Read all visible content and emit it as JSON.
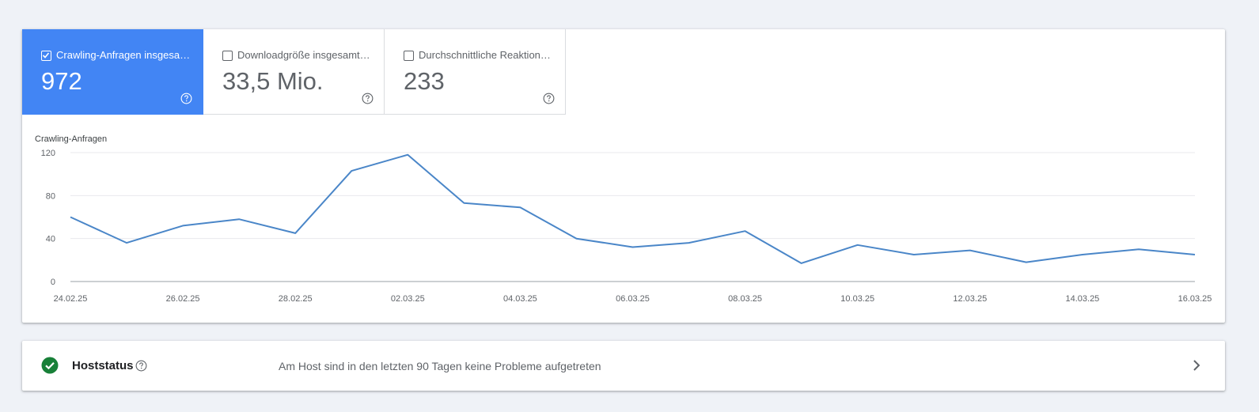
{
  "metrics": [
    {
      "label": "Crawling-Anfragen insgesa…",
      "value": "972",
      "checked": true
    },
    {
      "label": "Downloadgröße insgesamt…",
      "value": "33,5 Mio.",
      "checked": false
    },
    {
      "label": "Durchschnittliche Reaktion…",
      "value": "233",
      "checked": false
    }
  ],
  "icons": {
    "checkbox": "checkbox-icon",
    "help": "help-circle-icon",
    "status": "check-circle-icon",
    "chevron": "chevron-right-icon"
  },
  "colors": {
    "accent": "#4285f4",
    "line": "#4a86c8",
    "ok": "#188038"
  },
  "chart_data": {
    "type": "line",
    "ylabel": "Crawling-Anfragen",
    "ylim": [
      0,
      120
    ],
    "yticks": [
      "120",
      "80",
      "40",
      "0"
    ],
    "x": [
      "24.02.25",
      "25.02.25",
      "26.02.25",
      "27.02.25",
      "28.02.25",
      "01.03.25",
      "02.03.25",
      "03.03.25",
      "04.03.25",
      "05.03.25",
      "06.03.25",
      "07.03.25",
      "08.03.25",
      "09.03.25",
      "10.03.25",
      "11.03.25",
      "12.03.25",
      "13.03.25",
      "14.03.25",
      "15.03.25",
      "16.03.25"
    ],
    "xticks": [
      "24.02.25",
      "26.02.25",
      "28.02.25",
      "02.03.25",
      "04.03.25",
      "06.03.25",
      "08.03.25",
      "10.03.25",
      "12.03.25",
      "14.03.25",
      "16.03.25"
    ],
    "series": [
      {
        "values": [
          60,
          36,
          52,
          58,
          45,
          103,
          118,
          73,
          69,
          40,
          32,
          36,
          47,
          17,
          34,
          25,
          29,
          18,
          25,
          30,
          25
        ]
      }
    ],
    "grid": true
  },
  "host": {
    "title": "Hoststatus",
    "message": "Am Host sind in den letzten 90 Tagen keine Probleme aufgetreten"
  }
}
